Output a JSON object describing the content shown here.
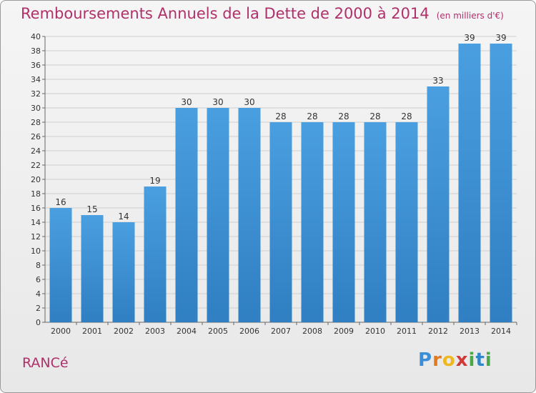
{
  "header": {
    "title": "Remboursements Annuels de la Dette de 2000 à 2014",
    "unit": "(en milliers d'€)"
  },
  "footer": {
    "place": "RANCé",
    "logo": {
      "letters": [
        "P",
        "r",
        "o",
        "x",
        "i",
        "t",
        "i"
      ],
      "colors": [
        "#3a8fd8",
        "#e07a1f",
        "#f0b820",
        "#d23a3a",
        "#4aa84a",
        "#2f86c8",
        "#4aa84a"
      ]
    }
  },
  "chart_data": {
    "type": "bar",
    "categories": [
      "2000",
      "2001",
      "2002",
      "2003",
      "2004",
      "2005",
      "2006",
      "2007",
      "2008",
      "2009",
      "2010",
      "2011",
      "2012",
      "2013",
      "2014"
    ],
    "values": [
      16,
      15,
      14,
      19,
      30,
      30,
      30,
      28,
      28,
      28,
      28,
      28,
      33,
      39,
      39
    ],
    "ylim": [
      0,
      40
    ],
    "yticks": [
      0,
      2,
      4,
      6,
      8,
      10,
      12,
      14,
      16,
      18,
      20,
      22,
      24,
      26,
      28,
      30,
      32,
      34,
      36,
      38,
      40
    ],
    "grid": true,
    "bar_color": "#4a9fe0",
    "bar_color_dark": "#2f7fc2",
    "grid_color": "#cfcfcf",
    "label_color": "#333333"
  }
}
